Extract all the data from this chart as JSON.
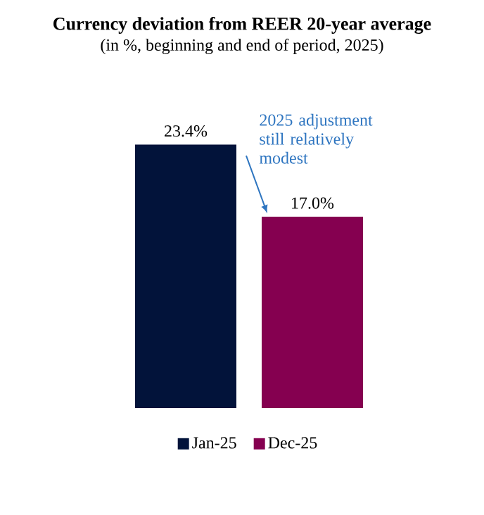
{
  "chart_data": {
    "type": "bar",
    "title": "Currency deviation from REER 20-year average",
    "subtitle": "(in %, beginning and end of period, 2025)",
    "categories": [
      null
    ],
    "series": [
      {
        "name": "Jan-25",
        "color": "#02133a",
        "values": [
          23.4
        ],
        "value_labels": [
          "23.4%"
        ]
      },
      {
        "name": "Dec-25",
        "color": "#850050",
        "values": [
          17.0
        ],
        "value_labels": [
          "17.0%"
        ]
      }
    ],
    "annotations": [
      "2025 adjustment still relatively modest"
    ],
    "legend": "bottom"
  }
}
